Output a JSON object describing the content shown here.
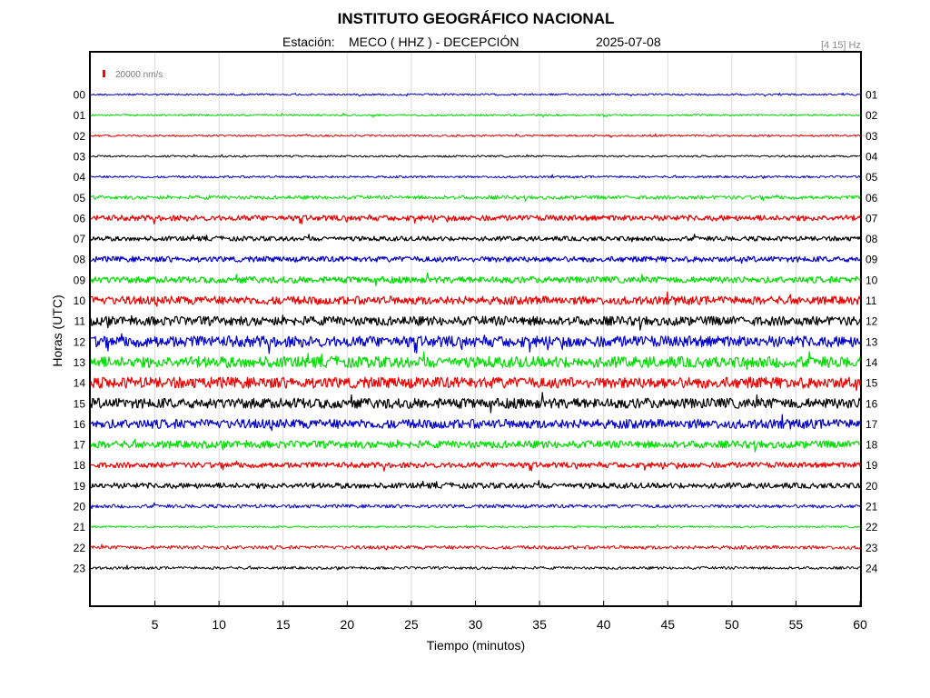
{
  "header": {
    "title": "INSTITUTO GEOGRÁFICO NACIONAL",
    "station_label": "Estación:",
    "station": "MECO ( HHZ ) - DECEPCIÓN",
    "date": "2025-07-08",
    "filter": "[4 15] Hz"
  },
  "scale": {
    "label": "20000 nm/s",
    "color": "#ff0000"
  },
  "colors": {
    "cycle": [
      "#0000cc",
      "#00dd00",
      "#ee0000",
      "#000000"
    ],
    "grid": "#d9d9d9",
    "frame": "#000000"
  },
  "chart_data": {
    "type": "line",
    "title": "INSTITUTO GEOGRÁFICO NACIONAL",
    "subtitle": "Estación:  MECO ( HHZ ) - DECEPCIÓN   2025-07-08",
    "xlabel": "Tiempo (minutos)",
    "ylabel": "Horas (UTC)",
    "xlim": [
      0,
      60
    ],
    "x_ticks": [
      "5",
      "10",
      "15",
      "20",
      "25",
      "30",
      "35",
      "40",
      "45",
      "50",
      "55",
      "60"
    ],
    "grid": true,
    "left_labels": [
      "00",
      "01",
      "02",
      "03",
      "04",
      "05",
      "06",
      "07",
      "08",
      "09",
      "10",
      "11",
      "12",
      "13",
      "14",
      "15",
      "16",
      "17",
      "18",
      "19",
      "20",
      "21",
      "22",
      "23"
    ],
    "right_labels": [
      "01",
      "02",
      "03",
      "04",
      "05",
      "06",
      "07",
      "08",
      "09",
      "10",
      "11",
      "12",
      "13",
      "14",
      "15",
      "16",
      "17",
      "18",
      "19",
      "20",
      "21",
      "22",
      "23",
      "24"
    ],
    "series": [
      {
        "hour": "00",
        "amplitude": 1.0
      },
      {
        "hour": "01",
        "amplitude": 1.0
      },
      {
        "hour": "02",
        "amplitude": 1.0
      },
      {
        "hour": "03",
        "amplitude": 1.0
      },
      {
        "hour": "04",
        "amplitude": 1.2
      },
      {
        "hour": "05",
        "amplitude": 2.0
      },
      {
        "hour": "06",
        "amplitude": 3.0
      },
      {
        "hour": "07",
        "amplitude": 2.5
      },
      {
        "hour": "08",
        "amplitude": 3.0
      },
      {
        "hour": "09",
        "amplitude": 3.5
      },
      {
        "hour": "10",
        "amplitude": 4.5
      },
      {
        "hour": "11",
        "amplitude": 5.0
      },
      {
        "hour": "12",
        "amplitude": 6.0
      },
      {
        "hour": "13",
        "amplitude": 6.0
      },
      {
        "hour": "14",
        "amplitude": 6.0
      },
      {
        "hour": "15",
        "amplitude": 5.5
      },
      {
        "hour": "16",
        "amplitude": 5.0
      },
      {
        "hour": "17",
        "amplitude": 4.0
      },
      {
        "hour": "18",
        "amplitude": 3.0
      },
      {
        "hour": "19",
        "amplitude": 3.0
      },
      {
        "hour": "20",
        "amplitude": 2.0
      },
      {
        "hour": "21",
        "amplitude": 1.0
      },
      {
        "hour": "22",
        "amplitude": 2.0
      },
      {
        "hour": "23",
        "amplitude": 1.5
      }
    ]
  }
}
